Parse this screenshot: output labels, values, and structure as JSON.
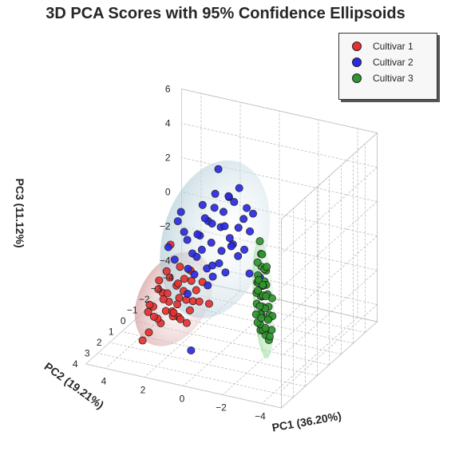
{
  "chart_data": {
    "type": "scatter",
    "title": "3D PCA Scores with 95% Confidence Ellipsoids",
    "xlabel": "PC1 (36.20%)",
    "ylabel": "PC2 (19.21%)",
    "zlabel": "PC3 (11.12%)",
    "xlim": [
      -5,
      5
    ],
    "ylim": [
      -4,
      4
    ],
    "zlim": [
      -5,
      6
    ],
    "x_ticks": [
      "4",
      "2",
      "0",
      "−2",
      "−4"
    ],
    "y_ticks": [
      "−4",
      "−3",
      "−2",
      "−1",
      "0",
      "1",
      "2",
      "3",
      "4"
    ],
    "z_ticks": [
      "6",
      "4",
      "2",
      "0",
      "−2",
      "−4"
    ],
    "legend_position": "top-right",
    "grid": true,
    "series": [
      {
        "name": "Cultivar 1",
        "color": "#e83030",
        "ellipsoid_color": "#c98080",
        "points": [
          [
            2.1,
            1.0,
            -3.4
          ],
          [
            2.5,
            1.4,
            -2.9
          ],
          [
            1.8,
            0.8,
            -3.8
          ],
          [
            2.9,
            1.8,
            -2.5
          ],
          [
            2.3,
            1.2,
            -3.0
          ],
          [
            1.6,
            0.6,
            -2.6
          ],
          [
            2.0,
            1.1,
            -2.2
          ],
          [
            2.7,
            1.5,
            -3.6
          ],
          [
            3.1,
            1.9,
            -2.8
          ],
          [
            1.9,
            0.9,
            -1.9
          ],
          [
            2.4,
            1.3,
            -2.4
          ],
          [
            2.2,
            1.0,
            -1.6
          ],
          [
            1.7,
            0.7,
            -3.1
          ],
          [
            2.8,
            1.6,
            -3.3
          ],
          [
            2.6,
            1.5,
            -1.8
          ],
          [
            1.5,
            0.5,
            -2.0
          ],
          [
            2.0,
            1.2,
            -1.3
          ],
          [
            2.3,
            1.4,
            -0.9
          ],
          [
            1.4,
            0.4,
            -2.7
          ],
          [
            3.0,
            2.0,
            -3.9
          ],
          [
            2.1,
            1.1,
            -2.6
          ],
          [
            1.8,
            1.0,
            -1.1
          ],
          [
            2.5,
            1.6,
            -2.1
          ],
          [
            2.2,
            1.3,
            -3.2
          ],
          [
            1.6,
            0.8,
            -0.7
          ],
          [
            2.7,
            1.7,
            -1.5
          ],
          [
            2.4,
            1.5,
            -0.5
          ],
          [
            1.3,
            0.3,
            -1.6
          ],
          [
            2.9,
            2.1,
            -2.2
          ],
          [
            2.0,
            1.0,
            -3.5
          ],
          [
            1.9,
            1.2,
            -0.3
          ],
          [
            2.6,
            1.8,
            -0.9
          ],
          [
            3.2,
            2.2,
            -4.3
          ],
          [
            2.1,
            1.4,
            -2.9
          ],
          [
            1.7,
            1.0,
            -2.3
          ],
          [
            2.3,
            1.6,
            -1.7
          ],
          [
            1.5,
            0.9,
            -1.2
          ],
          [
            2.8,
            1.9,
            -3.0
          ],
          [
            2.2,
            1.5,
            1.1
          ],
          [
            0.9,
            0.4,
            -2.7
          ]
        ]
      },
      {
        "name": "Cultivar 2",
        "color": "#2a2ae6",
        "ellipsoid_color": "#9fc1cf",
        "points": [
          [
            0.9,
            -0.8,
            1.9
          ],
          [
            1.5,
            -0.5,
            1.4
          ],
          [
            0.6,
            -1.2,
            2.3
          ],
          [
            1.1,
            -0.9,
            0.9
          ],
          [
            1.8,
            -0.3,
            0.6
          ],
          [
            0.3,
            -1.5,
            1.2
          ],
          [
            1.3,
            -0.7,
            2.1
          ],
          [
            0.7,
            -1.0,
            0.3
          ],
          [
            2.0,
            0.0,
            -0.3
          ],
          [
            0.4,
            -1.3,
            3.1
          ],
          [
            1.6,
            -0.4,
            1.6
          ],
          [
            1.0,
            -0.8,
            -0.4
          ],
          [
            2.3,
            0.2,
            1.0
          ],
          [
            0.2,
            -1.6,
            1.8
          ],
          [
            1.4,
            -0.6,
            0.1
          ],
          [
            0.8,
            -1.1,
            2.6
          ],
          [
            1.9,
            -0.2,
            -0.6
          ],
          [
            0.5,
            -1.4,
            0.7
          ],
          [
            2.4,
            0.3,
            2.2
          ],
          [
            1.2,
            -0.6,
            3.0
          ],
          [
            0.1,
            -1.7,
            0.4
          ],
          [
            1.7,
            -0.3,
            -0.2
          ],
          [
            0.9,
            -0.9,
            1.0
          ],
          [
            2.2,
            0.1,
            0.5
          ],
          [
            0.0,
            -1.8,
            1.4
          ],
          [
            1.1,
            -0.7,
            4.4
          ],
          [
            1.5,
            -0.4,
            -1.3
          ],
          [
            0.6,
            -1.1,
            -0.1
          ],
          [
            2.6,
            0.5,
            -0.5
          ],
          [
            1.3,
            -0.5,
            1.3
          ],
          [
            0.4,
            -1.2,
            -0.8
          ],
          [
            1.8,
            -0.1,
            0.8
          ],
          [
            2.1,
            0.2,
            -1.1
          ],
          [
            0.7,
            -0.9,
            2.8
          ],
          [
            1.0,
            -0.6,
            -1.0
          ],
          [
            2.8,
            0.7,
            0.3
          ],
          [
            1.6,
            -0.2,
            2.5
          ],
          [
            0.2,
            -1.4,
            -0.5
          ],
          [
            1.2,
            -0.4,
            -1.7
          ],
          [
            2.5,
            0.4,
            1.7
          ],
          [
            0.8,
            -0.8,
            -1.6
          ],
          [
            1.9,
            0.0,
            -1.5
          ],
          [
            0.0,
            -1.5,
            -1.9
          ],
          [
            1.4,
            -0.3,
            -2.2
          ],
          [
            1.7,
            0.6,
            -5.5
          ],
          [
            -0.3,
            -1.9,
            -2.3
          ],
          [
            2.0,
            0.4,
            -2.4
          ],
          [
            1.1,
            -0.2,
            -0.9
          ],
          [
            0.5,
            -0.8,
            0.0
          ]
        ]
      },
      {
        "name": "Cultivar 3",
        "color": "#2e962e",
        "ellipsoid_color": "#7ed47e",
        "points": [
          [
            -2.3,
            1.0,
            -0.2
          ],
          [
            -2.7,
            1.4,
            -0.6
          ],
          [
            -1.9,
            0.6,
            0.3
          ],
          [
            -3.0,
            1.8,
            -1.0
          ],
          [
            -2.5,
            1.2,
            0.6
          ],
          [
            -1.6,
            0.4,
            -0.4
          ],
          [
            -2.9,
            1.6,
            -1.8
          ],
          [
            -2.1,
            0.9,
            -1.2
          ],
          [
            -3.3,
            2.0,
            -0.3
          ],
          [
            -1.8,
            0.5,
            -1.5
          ],
          [
            -2.6,
            1.5,
            0.9
          ],
          [
            -2.2,
            1.1,
            -2.1
          ],
          [
            -3.1,
            1.9,
            -1.4
          ],
          [
            -1.5,
            0.3,
            -0.9
          ],
          [
            -2.8,
            1.7,
            -2.5
          ],
          [
            -2.4,
            1.3,
            -0.8
          ],
          [
            -2.0,
            0.8,
            1.2
          ],
          [
            -3.4,
            2.2,
            -2.0
          ],
          [
            -1.7,
            0.6,
            0.5
          ],
          [
            -2.6,
            1.4,
            -3.0
          ],
          [
            -2.2,
            1.0,
            -1.7
          ],
          [
            -3.0,
            2.0,
            0.4
          ],
          [
            -1.9,
            0.7,
            -2.4
          ],
          [
            -2.7,
            1.6,
            -1.3
          ],
          [
            -2.3,
            1.2,
            1.5
          ],
          [
            -3.2,
            2.1,
            -2.7
          ],
          [
            -1.6,
            0.5,
            -2.0
          ],
          [
            -2.5,
            1.5,
            -0.1
          ],
          [
            -2.1,
            1.0,
            -3.1
          ],
          [
            -2.9,
            1.8,
            1.3
          ],
          [
            -1.8,
            0.7,
            -0.6
          ],
          [
            -3.5,
            2.3,
            -1.1
          ],
          [
            -2.4,
            1.3,
            -2.8
          ],
          [
            -2.0,
            0.9,
            2.0
          ],
          [
            -2.8,
            1.7,
            -0.5
          ],
          [
            -1.4,
            0.2,
            -1.6
          ],
          [
            -3.1,
            2.0,
            -1.6
          ],
          [
            -2.2,
            1.2,
            -2.6
          ],
          [
            -2.6,
            1.6,
            0.0
          ],
          [
            -1.7,
            0.6,
            -3.0
          ],
          [
            -2.9,
            1.9,
            -2.2
          ],
          [
            -2.3,
            1.4,
            -1.4
          ],
          [
            -2.0,
            1.0,
            -0.2
          ],
          [
            -3.3,
            2.2,
            -2.4
          ],
          [
            -1.5,
            0.4,
            -2.7
          ],
          [
            -2.5,
            1.6,
            -1.9
          ],
          [
            -2.7,
            1.8,
            0.2
          ],
          [
            -1.9,
            0.9,
            -0.9
          ]
        ]
      }
    ]
  }
}
